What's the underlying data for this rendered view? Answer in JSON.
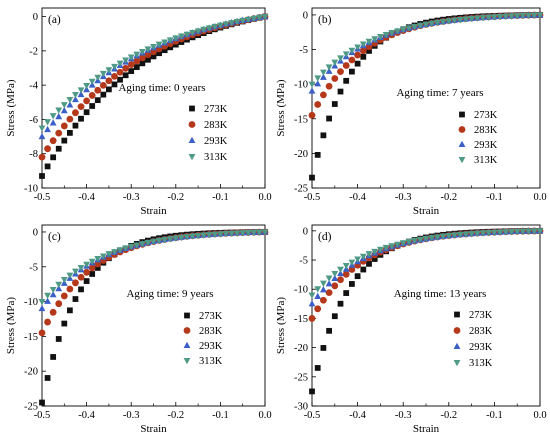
{
  "colors": {
    "273K": "#111111",
    "283K": "#b5381a",
    "293K": "#3a5fc8",
    "313K": "#4f9a86"
  },
  "chart_data": [
    {
      "type": "scatter",
      "panel_label": "(a)",
      "annotation": "Aging time: 0 years",
      "xlabel": "Strain",
      "ylabel": "Stress (MPa)",
      "xlim": [
        -0.5,
        0.0
      ],
      "ylim": [
        -10,
        0.5
      ],
      "xticks": [
        "-0.5",
        "-0.4",
        "-0.3",
        "-0.2",
        "-0.1",
        "0.0"
      ],
      "yticks": [
        "0",
        "-2",
        "-4",
        "-6",
        "-8",
        "-10"
      ],
      "xtick_values": [
        -0.5,
        -0.4,
        -0.3,
        -0.2,
        -0.1,
        0.0
      ],
      "ytick_values": [
        0,
        -2,
        -4,
        -6,
        -8,
        -10
      ],
      "legend_position": "right",
      "series": [
        {
          "name": "273K",
          "marker": "square",
          "stress_at_min_strain": -9.3,
          "curvature": 2.2
        },
        {
          "name": "283K",
          "marker": "circle",
          "stress_at_min_strain": -8.2,
          "curvature": 2.2
        },
        {
          "name": "293K",
          "marker": "triangle-up",
          "stress_at_min_strain": -7.0,
          "curvature": 2.1
        },
        {
          "name": "313K",
          "marker": "triangle-down",
          "stress_at_min_strain": -6.5,
          "curvature": 2.0
        }
      ]
    },
    {
      "type": "scatter",
      "panel_label": "(b)",
      "annotation": "Aging time: 7 years",
      "xlabel": "Strain",
      "ylabel": "Stress (MPa)",
      "xlim": [
        -0.5,
        0.0
      ],
      "ylim": [
        -25,
        1
      ],
      "xticks": [
        "-0.5",
        "-0.4",
        "-0.3",
        "-0.2",
        "-0.1",
        "0.0"
      ],
      "yticks": [
        "0",
        "-5",
        "-10",
        "-15",
        "-20",
        "-25"
      ],
      "xtick_values": [
        -0.5,
        -0.4,
        -0.3,
        -0.2,
        -0.1,
        0.0
      ],
      "ytick_values": [
        0,
        -5,
        -10,
        -15,
        -20,
        -25
      ],
      "legend_position": "right",
      "series": [
        {
          "name": "273K",
          "marker": "square",
          "stress_at_min_strain": -23.5,
          "curvature": 6.0
        },
        {
          "name": "283K",
          "marker": "circle",
          "stress_at_min_strain": -14.5,
          "curvature": 4.5
        },
        {
          "name": "293K",
          "marker": "triangle-up",
          "stress_at_min_strain": -11.0,
          "curvature": 3.9
        },
        {
          "name": "313K",
          "marker": "triangle-down",
          "stress_at_min_strain": -10.0,
          "curvature": 3.7
        }
      ]
    },
    {
      "type": "scatter",
      "panel_label": "(c)",
      "annotation": "Aging time: 9 years",
      "xlabel": "Strain",
      "ylabel": "Stress (MPa)",
      "xlim": [
        -0.5,
        0.0
      ],
      "ylim": [
        -25,
        1
      ],
      "xticks": [
        "-0.5",
        "-0.4",
        "-0.3",
        "-0.2",
        "-0.1",
        "0.0"
      ],
      "yticks": [
        "0",
        "-5",
        "-10",
        "-15",
        "-20",
        "-25"
      ],
      "xtick_values": [
        -0.5,
        -0.4,
        -0.3,
        -0.2,
        -0.1,
        0.0
      ],
      "ytick_values": [
        0,
        -5,
        -10,
        -15,
        -20,
        -25
      ],
      "legend_position": "right",
      "series": [
        {
          "name": "273K",
          "marker": "square",
          "stress_at_min_strain": -24.5,
          "curvature": 6.2
        },
        {
          "name": "283K",
          "marker": "circle",
          "stress_at_min_strain": -14.5,
          "curvature": 4.5
        },
        {
          "name": "293K",
          "marker": "triangle-up",
          "stress_at_min_strain": -11.0,
          "curvature": 3.9
        },
        {
          "name": "313K",
          "marker": "triangle-down",
          "stress_at_min_strain": -10.0,
          "curvature": 3.7
        }
      ]
    },
    {
      "type": "scatter",
      "panel_label": "(d)",
      "annotation": "Aging time: 13 years",
      "xlabel": "Strain",
      "ylabel": "Stress (MPa)",
      "xlim": [
        -0.5,
        0.0
      ],
      "ylim": [
        -30,
        1
      ],
      "xticks": [
        "-0.5",
        "-0.4",
        "-0.3",
        "-0.2",
        "-0.1",
        "0.0"
      ],
      "yticks": [
        "0",
        "-5",
        "-10",
        "-15",
        "-20",
        "-25",
        "-30"
      ],
      "xtick_values": [
        -0.5,
        -0.4,
        -0.3,
        -0.2,
        -0.1,
        0.0
      ],
      "ytick_values": [
        0,
        -5,
        -10,
        -15,
        -20,
        -25,
        -30
      ],
      "legend_position": "right",
      "series": [
        {
          "name": "273K",
          "marker": "square",
          "stress_at_min_strain": -27.5,
          "curvature": 6.3
        },
        {
          "name": "283K",
          "marker": "circle",
          "stress_at_min_strain": -15.0,
          "curvature": 4.6
        },
        {
          "name": "293K",
          "marker": "triangle-up",
          "stress_at_min_strain": -12.5,
          "curvature": 4.2
        },
        {
          "name": "313K",
          "marker": "triangle-down",
          "stress_at_min_strain": -11.0,
          "curvature": 4.0
        }
      ]
    }
  ]
}
